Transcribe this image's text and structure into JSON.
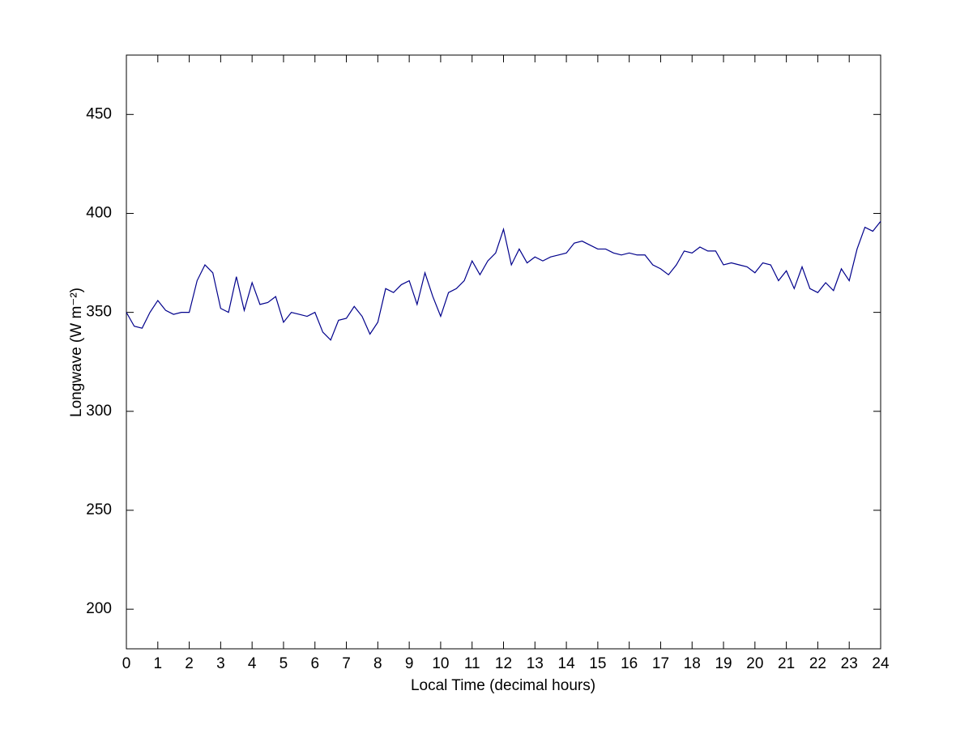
{
  "chart_data": {
    "type": "line",
    "xlabel": "Local Time (decimal hours)",
    "ylabel": "Longwave (W m⁻²)",
    "x": [
      0,
      0.25,
      0.5,
      0.75,
      1,
      1.25,
      1.5,
      1.75,
      2,
      2.25,
      2.5,
      2.75,
      3,
      3.25,
      3.5,
      3.75,
      4,
      4.25,
      4.5,
      4.75,
      5,
      5.25,
      5.5,
      5.75,
      6,
      6.25,
      6.5,
      6.75,
      7,
      7.25,
      7.5,
      7.75,
      8,
      8.25,
      8.5,
      8.75,
      9,
      9.25,
      9.5,
      9.75,
      10,
      10.25,
      10.5,
      10.75,
      11,
      11.25,
      11.5,
      11.75,
      12,
      12.25,
      12.5,
      12.75,
      13,
      13.25,
      13.5,
      13.75,
      14,
      14.25,
      14.5,
      14.75,
      15,
      15.25,
      15.5,
      15.75,
      16,
      16.25,
      16.5,
      16.75,
      17,
      17.25,
      17.5,
      17.75,
      18,
      18.25,
      18.5,
      18.75,
      19,
      19.25,
      19.5,
      19.75,
      20,
      20.25,
      20.5,
      20.75,
      21,
      21.25,
      21.5,
      21.75,
      22,
      22.25,
      22.5,
      22.75,
      23,
      23.25,
      23.5,
      23.75,
      24
    ],
    "series": [
      {
        "name": "Longwave",
        "color": "#00008b",
        "values": [
          350,
          343,
          342,
          350,
          356,
          351,
          349,
          350,
          350,
          366,
          374,
          370,
          352,
          350,
          368,
          351,
          365,
          354,
          355,
          358,
          345,
          350,
          349,
          348,
          350,
          340,
          336,
          346,
          347,
          353,
          348,
          339,
          345,
          362,
          360,
          364,
          366,
          354,
          370,
          358,
          348,
          360,
          362,
          366,
          376,
          369,
          376,
          380,
          392,
          374,
          382,
          375,
          378,
          376,
          378,
          379,
          380,
          385,
          386,
          384,
          382,
          382,
          380,
          379,
          380,
          379,
          379,
          374,
          372,
          369,
          374,
          381,
          380,
          383,
          381,
          381,
          374,
          375,
          374,
          373,
          370,
          375,
          374,
          366,
          371,
          362,
          373,
          362,
          360,
          365,
          361,
          372,
          366,
          382,
          393,
          391,
          396
        ]
      }
    ],
    "xlim": [
      0,
      24
    ],
    "xticks": [
      0,
      1,
      2,
      3,
      4,
      5,
      6,
      7,
      8,
      9,
      10,
      11,
      12,
      13,
      14,
      15,
      16,
      17,
      18,
      19,
      20,
      21,
      22,
      23,
      24
    ],
    "ylim": [
      180,
      480
    ],
    "yticks": [
      200,
      250,
      300,
      350,
      400,
      450
    ]
  }
}
